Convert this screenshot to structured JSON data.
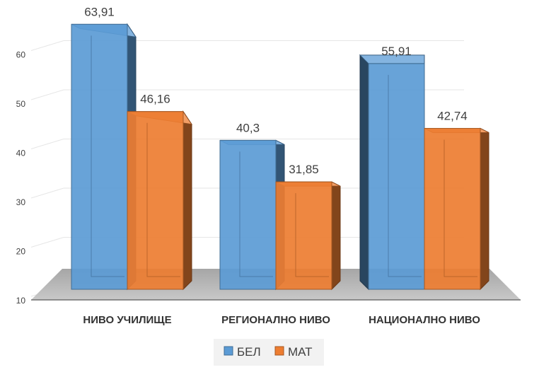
{
  "chart_data": {
    "type": "bar",
    "categories": [
      "НИВО УЧИЛИЩЕ",
      "РЕГИОНАЛНО НИВО",
      "НАЦИОНАЛНО НИВО"
    ],
    "series": [
      {
        "name": "БЕЛ",
        "values": [
          63.91,
          40.3,
          55.91
        ],
        "labels": [
          "63,91",
          "40,3",
          "55,91"
        ],
        "color": "#5b9bd5"
      },
      {
        "name": "МАТ",
        "values": [
          46.16,
          31.85,
          42.74
        ],
        "labels": [
          "46,16",
          "31,85",
          "42,74"
        ],
        "color": "#ed7d31"
      }
    ],
    "yticks": [
      10,
      20,
      30,
      40,
      50,
      60
    ],
    "ylim": [
      10,
      60
    ],
    "grid": true,
    "legend": "bottom",
    "style": "3d-clustered-column"
  }
}
